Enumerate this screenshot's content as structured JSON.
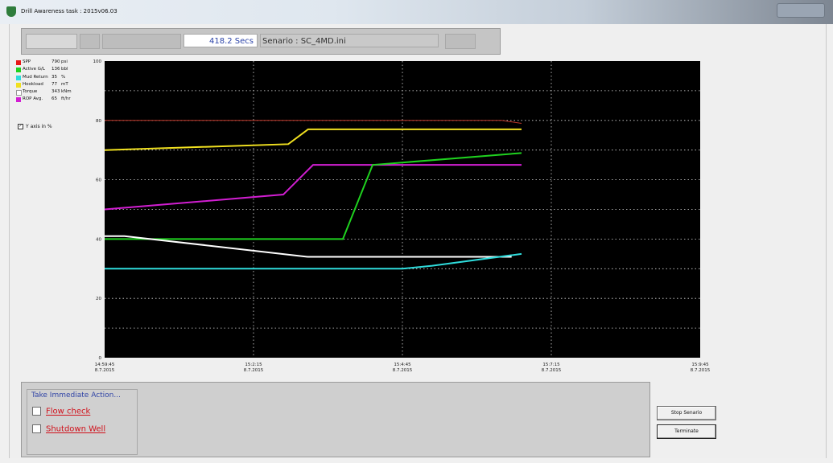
{
  "window": {
    "title": "Drill Awareness task : 2015v06.03"
  },
  "toolbar": {
    "elapsed": "418.2  Secs",
    "scenario": "Senario : SC_4MD.ini"
  },
  "legend": [
    {
      "name": "SPP",
      "value": "790",
      "unit": "psi",
      "color": "#e81818"
    },
    {
      "name": "Active G/L",
      "value": "136",
      "unit": "bbl",
      "color": "#1fd21f"
    },
    {
      "name": "Mud Return",
      "value": "35",
      "unit": "%",
      "color": "#2fdcdc"
    },
    {
      "name": "Hookload",
      "value": "77",
      "unit": "mT",
      "color": "#f0e020"
    },
    {
      "name": "Torque",
      "value": "343",
      "unit": "kNm",
      "color": "#ffffff"
    },
    {
      "name": "ROP Avg.",
      "value": "65",
      "unit": "ft/hr",
      "color": "#d21ed2"
    }
  ],
  "options": {
    "y_axis_pct_label": "Y axis in %",
    "y_axis_pct_checked": true
  },
  "chart_data": {
    "type": "line",
    "ylim": [
      0,
      100
    ],
    "y_ticks": [
      "0",
      "20",
      "40",
      "60",
      "80",
      "100"
    ],
    "x_ticks": [
      {
        "time": "14:59:45",
        "date": "8.7.2015"
      },
      {
        "time": "15:2:15",
        "date": "8.7.2015"
      },
      {
        "time": "15:4:45",
        "date": "8.7.2015"
      },
      {
        "time": "15:7:15",
        "date": "8.7.2015"
      },
      {
        "time": "15:9:45",
        "date": "8.7.2015"
      }
    ],
    "xlim_seconds": [
      0,
      600
    ],
    "grid": true,
    "series": [
      {
        "name": "SPP",
        "color": "#c0392b",
        "x": [
          0,
          400,
          420
        ],
        "y": [
          80,
          80,
          79
        ]
      },
      {
        "name": "Hookload",
        "color": "#f0e020",
        "x": [
          0,
          185,
          205,
          420
        ],
        "y": [
          70,
          72,
          77,
          77
        ]
      },
      {
        "name": "ROP Avg.",
        "color": "#d21ed2",
        "x": [
          0,
          180,
          210,
          420
        ],
        "y": [
          50,
          55,
          65,
          65
        ]
      },
      {
        "name": "Active G/L",
        "color": "#1fd21f",
        "x": [
          0,
          240,
          270,
          420
        ],
        "y": [
          40,
          40,
          65,
          69
        ]
      },
      {
        "name": "Torque",
        "color": "#ffffff",
        "x": [
          0,
          20,
          205,
          410
        ],
        "y": [
          41,
          41,
          34,
          34
        ]
      },
      {
        "name": "Mud Return",
        "color": "#2fdcdc",
        "x": [
          0,
          300,
          330,
          420
        ],
        "y": [
          30,
          30,
          31,
          35
        ]
      }
    ]
  },
  "actions": {
    "title": "Take Immediate Action...",
    "flow_check": "Flow check",
    "shutdown_well": "Shutdown Well"
  },
  "buttons": {
    "stop": "Stop Senario",
    "terminate": "Terminate"
  }
}
